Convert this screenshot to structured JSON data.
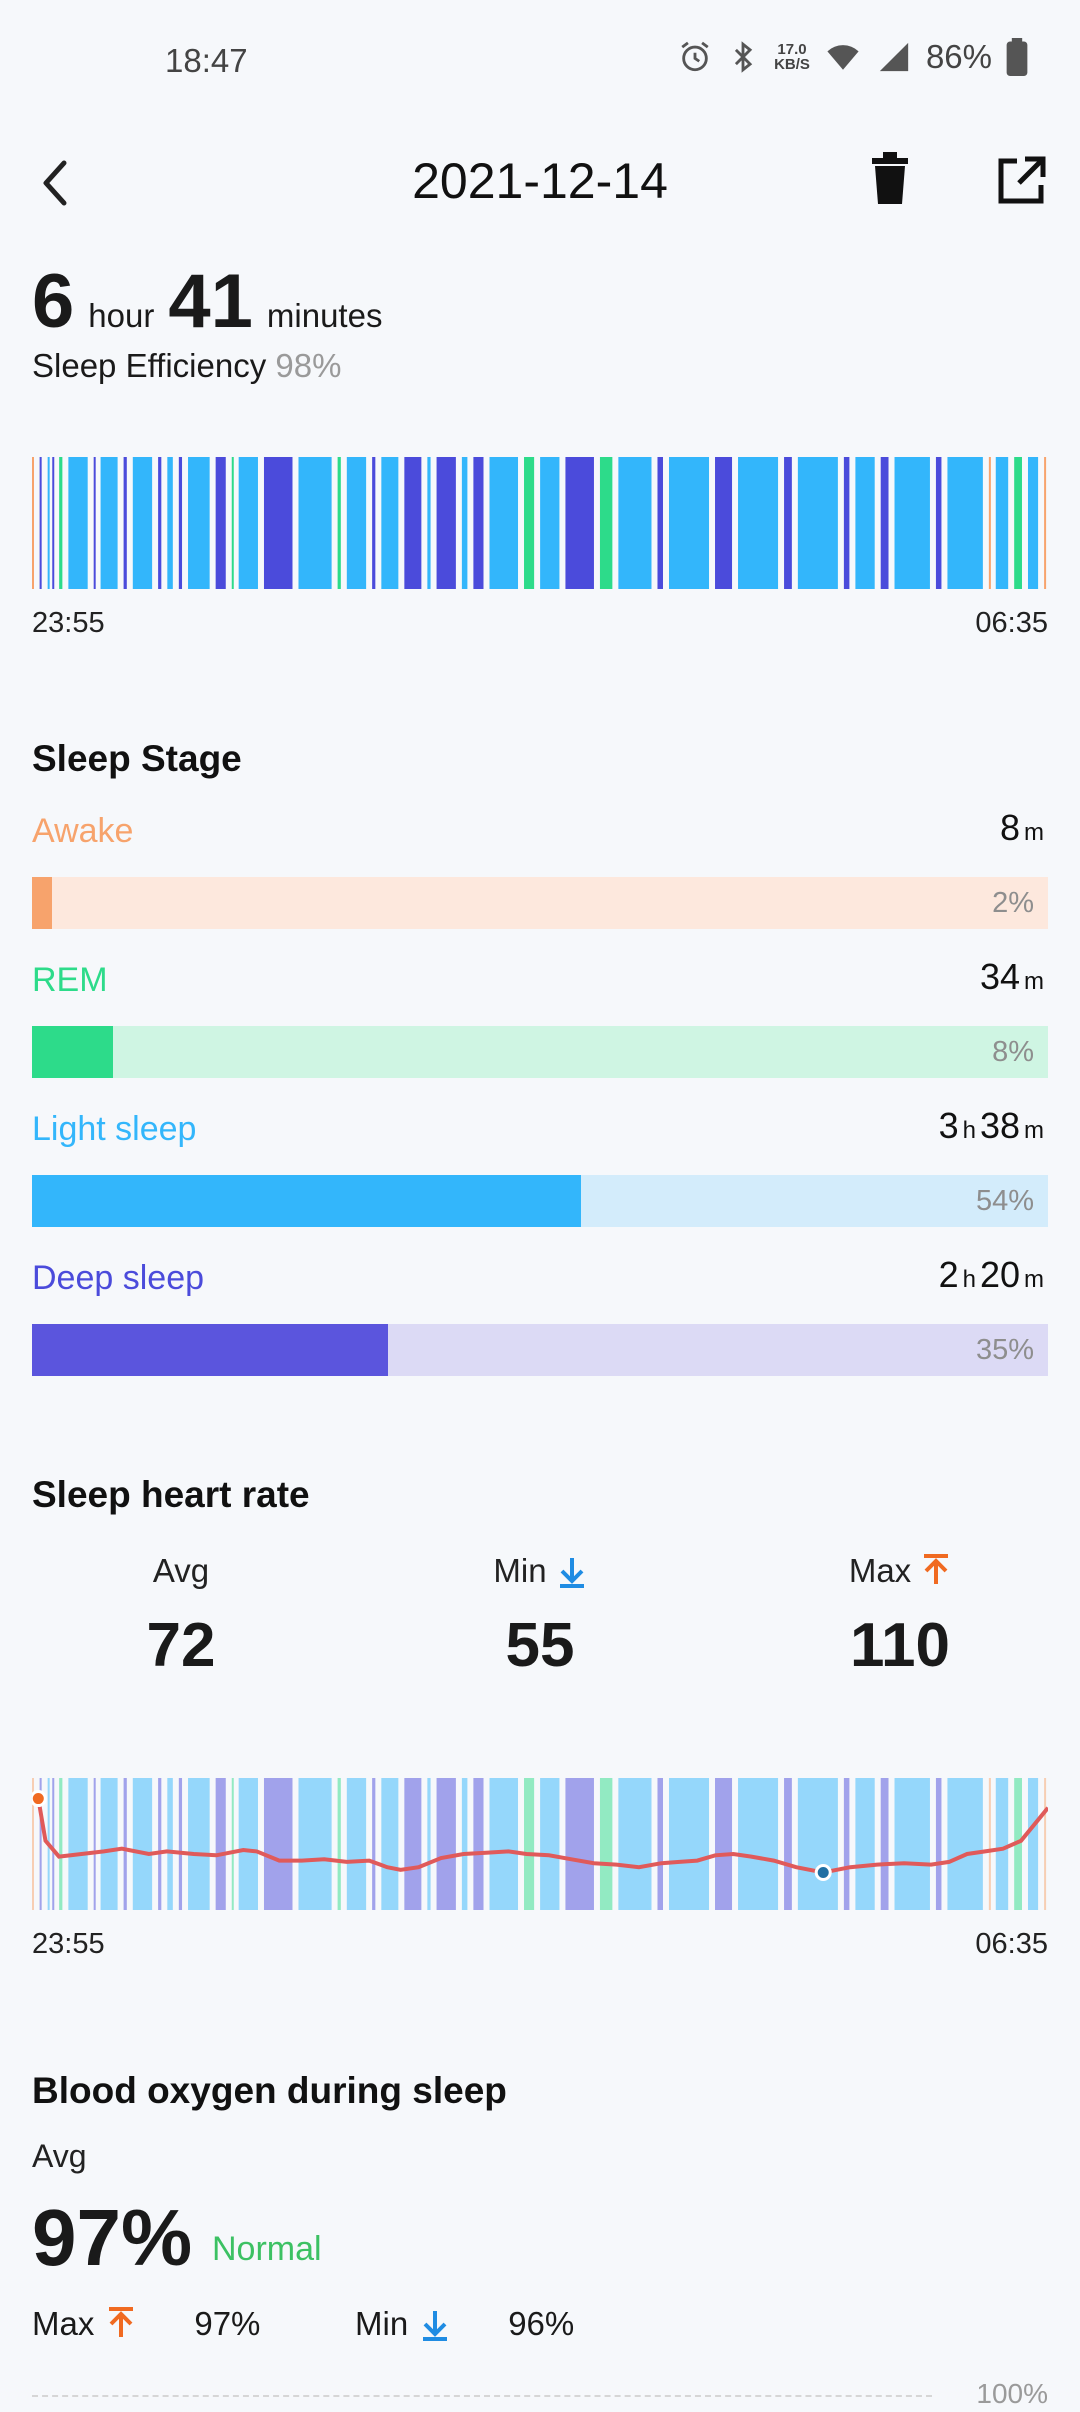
{
  "status_bar": {
    "time": "18:47",
    "net_speed_top": "17.0",
    "net_speed_bottom": "KB/S",
    "battery": "86%"
  },
  "header": {
    "title": "2021-12-14"
  },
  "summary": {
    "hours": "6",
    "hour_unit": "hour",
    "minutes": "41",
    "minute_unit": "minutes",
    "efficiency_label": "Sleep Efficiency",
    "efficiency_value": "98%"
  },
  "timeline": {
    "start": "23:55",
    "end": "06:35",
    "segments": [
      "awake",
      "deep",
      "light",
      "deep",
      "rem",
      "light",
      "deep",
      "light",
      "deep",
      "light",
      "deep",
      "light",
      "deep",
      "light",
      "deep",
      "rem",
      "light",
      "deep",
      "light",
      "rem",
      "light",
      "deep",
      "light",
      "deep",
      "light",
      "deep",
      "light",
      "deep",
      "light",
      "rem",
      "light",
      "deep",
      "rem",
      "light",
      "deep",
      "light",
      "deep",
      "light",
      "deep",
      "light",
      "deep",
      "light",
      "deep",
      "light",
      "deep",
      "light",
      "awake",
      "light",
      "rem",
      "light",
      "awake"
    ]
  },
  "colors": {
    "awake": "#f7a36c",
    "rem": "#2ddb8a",
    "light": "#33b6fb",
    "deep": "#4b4bdb",
    "awake_track": "#fde8dd",
    "rem_track": "#cff5e3",
    "light_track": "#d3ecfb",
    "deep_track": "#dcdaf5",
    "hr_line": "#e05a5a",
    "normal": "#3cc163",
    "arrow_up": "#f06a21",
    "arrow_down": "#1f8ce3"
  },
  "sleep_stage": {
    "title": "Sleep Stage",
    "stages": [
      {
        "name": "Awake",
        "key": "awake",
        "h": "",
        "h_unit": "",
        "m": "8",
        "m_unit": "m",
        "pct": "2%",
        "fraction": 0.02
      },
      {
        "name": "REM",
        "key": "rem",
        "h": "",
        "h_unit": "",
        "m": "34",
        "m_unit": "m",
        "pct": "8%",
        "fraction": 0.08
      },
      {
        "name": "Light sleep",
        "key": "light",
        "h": "3",
        "h_unit": "h",
        "m": "38",
        "m_unit": "m",
        "pct": "54%",
        "fraction": 0.54
      },
      {
        "name": "Deep sleep",
        "key": "deep",
        "h": "2",
        "h_unit": "h",
        "m": "20",
        "m_unit": "m",
        "pct": "35%",
        "fraction": 0.35
      }
    ]
  },
  "heart_rate": {
    "title": "Sleep heart rate",
    "avg_label": "Avg",
    "avg_value": "72",
    "min_label": "Min",
    "min_value": "55",
    "max_label": "Max",
    "max_value": "110",
    "start": "23:55",
    "end": "06:35"
  },
  "blood_oxygen": {
    "title": "Blood oxygen during sleep",
    "avg_label": "Avg",
    "avg_value": "97%",
    "status": "Normal",
    "max_label": "Max",
    "max_value": "97%",
    "min_label": "Min",
    "min_value": "96%",
    "axis_top": "100%"
  }
}
